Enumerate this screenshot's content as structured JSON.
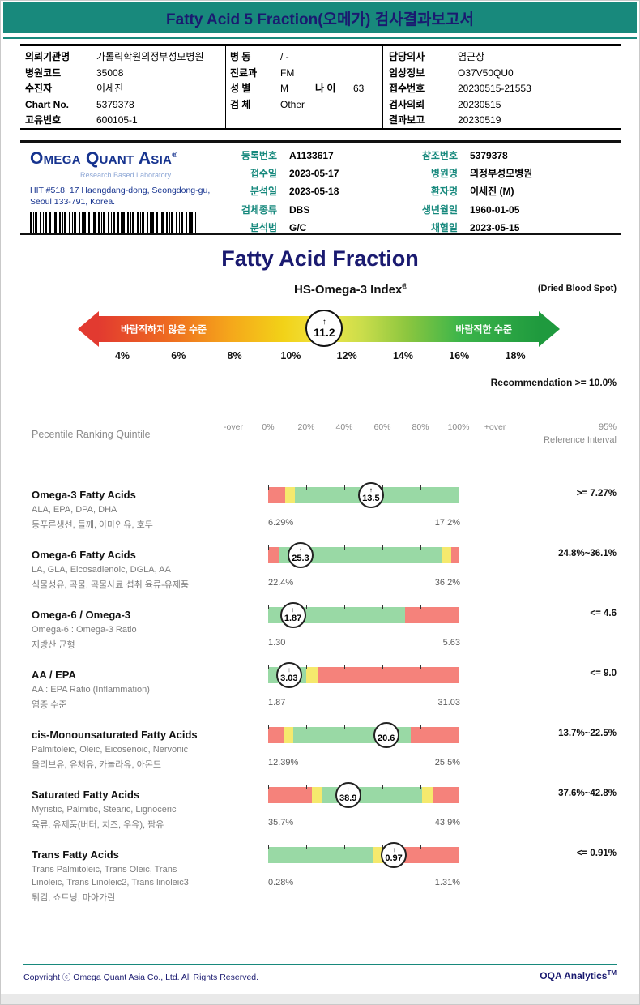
{
  "page": {
    "title_bar": "Fatty Acid 5 Fraction(오메가) 검사결과보고서"
  },
  "colors": {
    "teal_accent": "#18897c",
    "navy_title": "#1a1a70",
    "logo_blue": "#16338f"
  },
  "patient": {
    "left": [
      {
        "label": "의뢰기관명",
        "value": "가톨릭학원의정부성모병원"
      },
      {
        "label": "병원코드",
        "value": "35008"
      },
      {
        "label": "수진자",
        "value": "이세진"
      },
      {
        "label": "Chart No.",
        "value": "5379378"
      },
      {
        "label": "고유번호",
        "value": "600105-1"
      }
    ],
    "middle": [
      {
        "label": "병 동",
        "value": "/ -"
      },
      {
        "label": "진료과",
        "value": "FM"
      },
      {
        "label": "성 별",
        "value": "M",
        "label2": "나 이",
        "value2": "63"
      },
      {
        "label": "검 체",
        "value": "Other"
      }
    ],
    "right": [
      {
        "label": "담당의사",
        "value": "염근상"
      },
      {
        "label": "임상정보",
        "value": "O37V50QU0"
      },
      {
        "label": "접수번호",
        "value": "20230515-21553"
      },
      {
        "label": "검사의뢰",
        "value": "20230515"
      },
      {
        "label": "결과보고",
        "value": "20230519"
      }
    ]
  },
  "lab": {
    "logo": "Omega Quant Asia",
    "logo_reg": "®",
    "logo_sub": "Research Based Laboratory",
    "address_line1": "HIT #518, 17 Haengdang-dong, Seongdong-gu,",
    "address_line2": "Seoul 133-791, Korea.",
    "middle": [
      {
        "label": "등록번호",
        "value": "A1133617"
      },
      {
        "label": "접수일",
        "value": "2023-05-17"
      },
      {
        "label": "분석일",
        "value": "2023-05-18"
      },
      {
        "label": "검체종류",
        "value": "DBS"
      },
      {
        "label": "분석법",
        "value": "G/C"
      }
    ],
    "right": [
      {
        "label": "참조번호",
        "value": "5379378"
      },
      {
        "label": "병원명",
        "value": "의정부성모병원"
      },
      {
        "label": "환자명",
        "value": "이세진 (M)"
      },
      {
        "label": "생년월일",
        "value": "1960-01-05"
      },
      {
        "label": "채혈일",
        "value": "2023-05-15"
      }
    ]
  },
  "report": {
    "title": "Fatty Acid Fraction",
    "index_title": "HS-Omega-3 Index",
    "index_reg": "®",
    "dried_blood_spot": "(Dried Blood Spot)",
    "recommendation": "Recommendation  >= 10.0%"
  },
  "gauge": {
    "left_label": "바람직하지 않은 수준",
    "right_label": "바람직한 수준",
    "value": "11.2",
    "value_num": 11.2,
    "scale_min": 4,
    "scale_max": 18,
    "ticks": [
      "4%",
      "6%",
      "8%",
      "10%",
      "12%",
      "14%",
      "16%",
      "18%"
    ]
  },
  "ranking": {
    "header": "Pecentile Ranking Quintile",
    "scale": [
      "-over",
      "0%",
      "20%",
      "40%",
      "60%",
      "80%",
      "100%",
      "+over"
    ],
    "ref_line1": "95%",
    "ref_line2": "Reference Interval",
    "colors": {
      "red": "#f5827b",
      "yellow": "#f5e96d",
      "green": "#99d9a5"
    },
    "rows": [
      {
        "name": "Omega-3 Fatty Acids",
        "sub": [
          "ALA, EPA, DPA, DHA"
        ],
        "desc": "등푸른생선, 들깨, 아마인유, 호두",
        "value": "13.5",
        "min": "6.29%",
        "max": "17.2%",
        "ref": ">= 7.27%",
        "marker_pct": 54,
        "segments": [
          {
            "color": "red",
            "w": 9
          },
          {
            "color": "yellow",
            "w": 5
          },
          {
            "color": "green",
            "w": 86
          }
        ]
      },
      {
        "name": "Omega-6 Fatty Acids",
        "sub": [
          "LA, GLA, Eicosadienoic, DGLA, AA"
        ],
        "desc": "식물성유, 곡물, 곡물사료 섭취 육류-유제품",
        "value": "25.3",
        "min": "22.4%",
        "max": "36.2%",
        "ref": "24.8%~36.1%",
        "marker_pct": 17,
        "segments": [
          {
            "color": "red",
            "w": 6
          },
          {
            "color": "green",
            "w": 85
          },
          {
            "color": "yellow",
            "w": 5
          },
          {
            "color": "red",
            "w": 4
          }
        ]
      },
      {
        "name": "Omega-6 / Omega-3",
        "sub": [
          "Omega-6 : Omega-3 Ratio"
        ],
        "desc": "지방산 균형",
        "value": "1.87",
        "min": "1.30",
        "max": "5.63",
        "ref": "<= 4.6",
        "marker_pct": 13,
        "segments": [
          {
            "color": "green",
            "w": 72
          },
          {
            "color": "red",
            "w": 28
          }
        ]
      },
      {
        "name": "AA / EPA",
        "sub": [
          "AA : EPA Ratio (Inflammation)"
        ],
        "desc": "염증 수준",
        "value": "3.03",
        "min": "1.87",
        "max": "31.03",
        "ref": "<= 9.0",
        "marker_pct": 11,
        "segments": [
          {
            "color": "green",
            "w": 20
          },
          {
            "color": "yellow",
            "w": 6
          },
          {
            "color": "red",
            "w": 74
          }
        ]
      },
      {
        "name": "cis-Monounsaturated Fatty Acids",
        "sub": [
          "Palmitoleic, Oleic, Eicosenoic, Nervonic"
        ],
        "desc": "올리브유, 유채유, 카놀라유, 아몬드",
        "value": "20.6",
        "min": "12.39%",
        "max": "25.5%",
        "ref": "13.7%~22.5%",
        "marker_pct": 62,
        "segments": [
          {
            "color": "red",
            "w": 8
          },
          {
            "color": "yellow",
            "w": 5
          },
          {
            "color": "green",
            "w": 62
          },
          {
            "color": "red",
            "w": 25
          }
        ]
      },
      {
        "name": "Saturated Fatty Acids",
        "sub": [
          "Myristic, Palmitic, Stearic, Lignoceric"
        ],
        "desc": "육류, 유제품(버터, 치즈, 우유), 팜유",
        "value": "38.9",
        "min": "35.7%",
        "max": "43.9%",
        "ref": "37.6%~42.8%",
        "marker_pct": 42,
        "segments": [
          {
            "color": "red",
            "w": 23
          },
          {
            "color": "yellow",
            "w": 5
          },
          {
            "color": "green",
            "w": 53
          },
          {
            "color": "yellow",
            "w": 6
          },
          {
            "color": "red",
            "w": 13
          }
        ]
      },
      {
        "name": "Trans Fatty Acids",
        "sub": [
          "Trans Palmitoleic, Trans Oleic, Trans",
          "Linoleic, Trans Linoleic2, Trans linoleic3"
        ],
        "desc": "튀김, 쇼트닝, 마아가린",
        "value": "0.97",
        "min": "0.28%",
        "max": "1.31%",
        "ref": "<= 0.91%",
        "marker_pct": 66,
        "segments": [
          {
            "color": "green",
            "w": 55
          },
          {
            "color": "yellow",
            "w": 9
          },
          {
            "color": "red",
            "w": 36
          }
        ]
      }
    ]
  },
  "footer": {
    "copyright": "Copyright ⓒ Omega Quant Asia Co., Ltd.  All Rights Reserved.",
    "brand": "OQA Analytics",
    "brand_tm": "TM"
  },
  "chart_data": [
    {
      "type": "gauge",
      "title": "HS-Omega-3 Index (Dried Blood Spot)",
      "value": 11.2,
      "axis_ticks_pct": [
        4,
        6,
        8,
        10,
        12,
        14,
        16,
        18
      ],
      "left_zone_label": "바람직하지 않은 수준",
      "right_zone_label": "바람직한 수준",
      "recommendation": ">= 10.0%"
    },
    {
      "type": "bar",
      "title": "Pecentile Ranking Quintile",
      "x_axis_pct": [
        0,
        20,
        40,
        60,
        80,
        100
      ],
      "series": [
        {
          "name": "Omega-3 Fatty Acids",
          "value": 13.5,
          "range_low": 6.29,
          "range_high": 17.2,
          "reference": ">= 7.27%",
          "percentile_marker_pct": 54
        },
        {
          "name": "Omega-6 Fatty Acids",
          "value": 25.3,
          "range_low": 22.4,
          "range_high": 36.2,
          "reference": "24.8%~36.1%",
          "percentile_marker_pct": 17
        },
        {
          "name": "Omega-6 / Omega-3",
          "value": 1.87,
          "range_low": 1.3,
          "range_high": 5.63,
          "reference": "<= 4.6",
          "percentile_marker_pct": 13
        },
        {
          "name": "AA / EPA",
          "value": 3.03,
          "range_low": 1.87,
          "range_high": 31.03,
          "reference": "<= 9.0",
          "percentile_marker_pct": 11
        },
        {
          "name": "cis-Monounsaturated Fatty Acids",
          "value": 20.6,
          "range_low": 12.39,
          "range_high": 25.5,
          "reference": "13.7%~22.5%",
          "percentile_marker_pct": 62
        },
        {
          "name": "Saturated Fatty Acids",
          "value": 38.9,
          "range_low": 35.7,
          "range_high": 43.9,
          "reference": "37.6%~42.8%",
          "percentile_marker_pct": 42
        },
        {
          "name": "Trans Fatty Acids",
          "value": 0.97,
          "range_low": 0.28,
          "range_high": 1.31,
          "reference": "<= 0.91%",
          "percentile_marker_pct": 66
        }
      ]
    }
  ]
}
